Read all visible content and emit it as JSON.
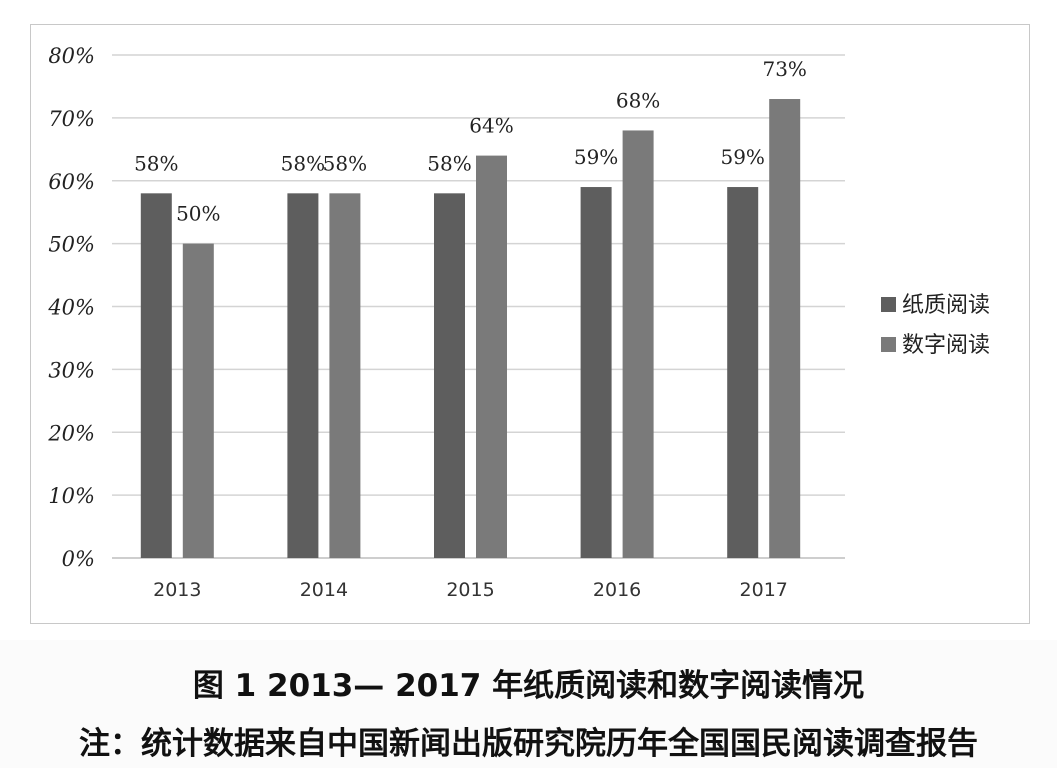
{
  "chart_data": {
    "type": "bar",
    "categories": [
      "2013",
      "2014",
      "2015",
      "2016",
      "2017"
    ],
    "series": [
      {
        "name": "纸质阅读",
        "values": [
          58,
          58,
          58,
          59,
          59
        ],
        "labels": [
          "58%",
          "58%",
          "58%",
          "59%",
          "59%"
        ],
        "color": "#5e5e5e"
      },
      {
        "name": "数字阅读",
        "values": [
          50,
          58,
          64,
          68,
          73
        ],
        "labels": [
          "50%",
          "58%",
          "64%",
          "68%",
          "73%"
        ],
        "color": "#7a7a7a"
      }
    ],
    "ylim": [
      0,
      80
    ],
    "yticks": [
      {
        "value": 0,
        "label": "0%"
      },
      {
        "value": 10,
        "label": "10%"
      },
      {
        "value": 20,
        "label": "20%"
      },
      {
        "value": 30,
        "label": "30%"
      },
      {
        "value": 40,
        "label": "40%"
      },
      {
        "value": 50,
        "label": "50%"
      },
      {
        "value": 60,
        "label": "60%"
      },
      {
        "value": 70,
        "label": "70%"
      },
      {
        "value": 80,
        "label": "80%"
      }
    ],
    "grid": true,
    "legend_position": "right",
    "gridline_color": "#d4d4d4"
  },
  "caption": {
    "title": "图 1   2013— 2017 年纸质阅读和数字阅读情况",
    "note": "注：统计数据来自中国新闻出版研究院历年全国国民阅读调查报告"
  }
}
